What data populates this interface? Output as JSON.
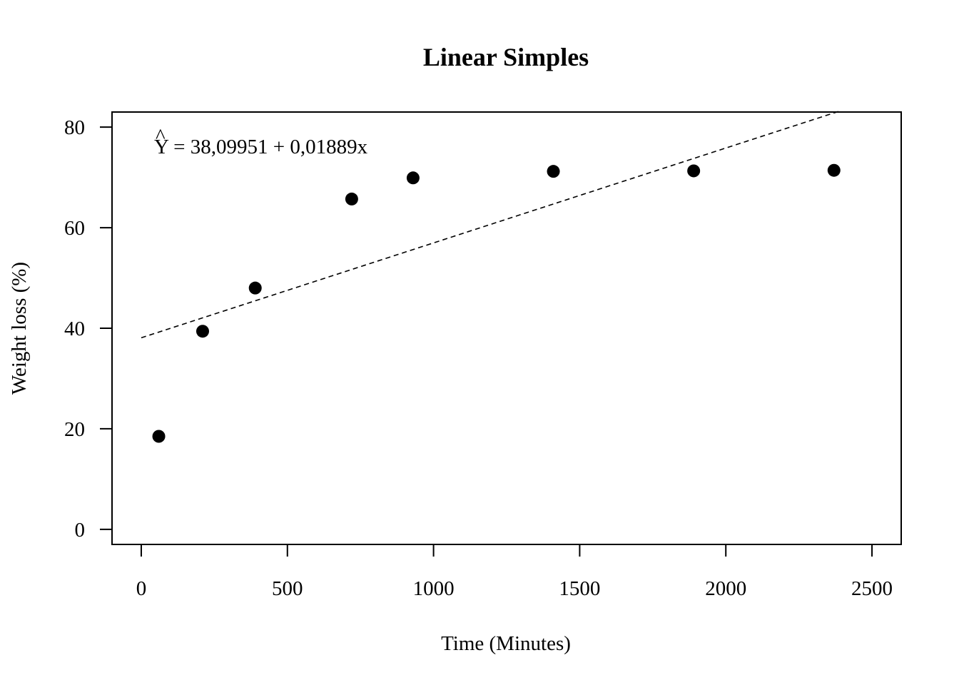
{
  "chart_data": {
    "type": "scatter",
    "title": "Linear Simples",
    "xlabel": "Time (Minutes)",
    "ylabel": "Weight loss (%)",
    "xlim": [
      -100,
      2600
    ],
    "ylim": [
      -3,
      83
    ],
    "x_ticks": [
      0,
      500,
      1000,
      1500,
      2000,
      2500
    ],
    "x_tick_labels": [
      "0",
      "500",
      "1000",
      "1500",
      "2000",
      "2500"
    ],
    "y_ticks": [
      0,
      20,
      40,
      60,
      80
    ],
    "y_tick_labels": [
      "0",
      "20",
      "40",
      "60",
      "80"
    ],
    "grid": false,
    "annotation": {
      "hat": "^",
      "symbol": "Y",
      "equation": " = 38,09951 + 0,01889x"
    },
    "series": [
      {
        "type": "scatter",
        "marker": "filled-circle",
        "color": "#000000",
        "x": [
          60,
          210,
          390,
          720,
          930,
          1410,
          1890,
          2370
        ],
        "y": [
          18.5,
          39.4,
          48.0,
          65.7,
          69.9,
          71.2,
          71.3,
          71.4
        ]
      },
      {
        "type": "line",
        "style": "dashed",
        "color": "#000000",
        "x": [
          0,
          2390
        ],
        "y": [
          38.09951,
          83.2
        ]
      }
    ]
  }
}
